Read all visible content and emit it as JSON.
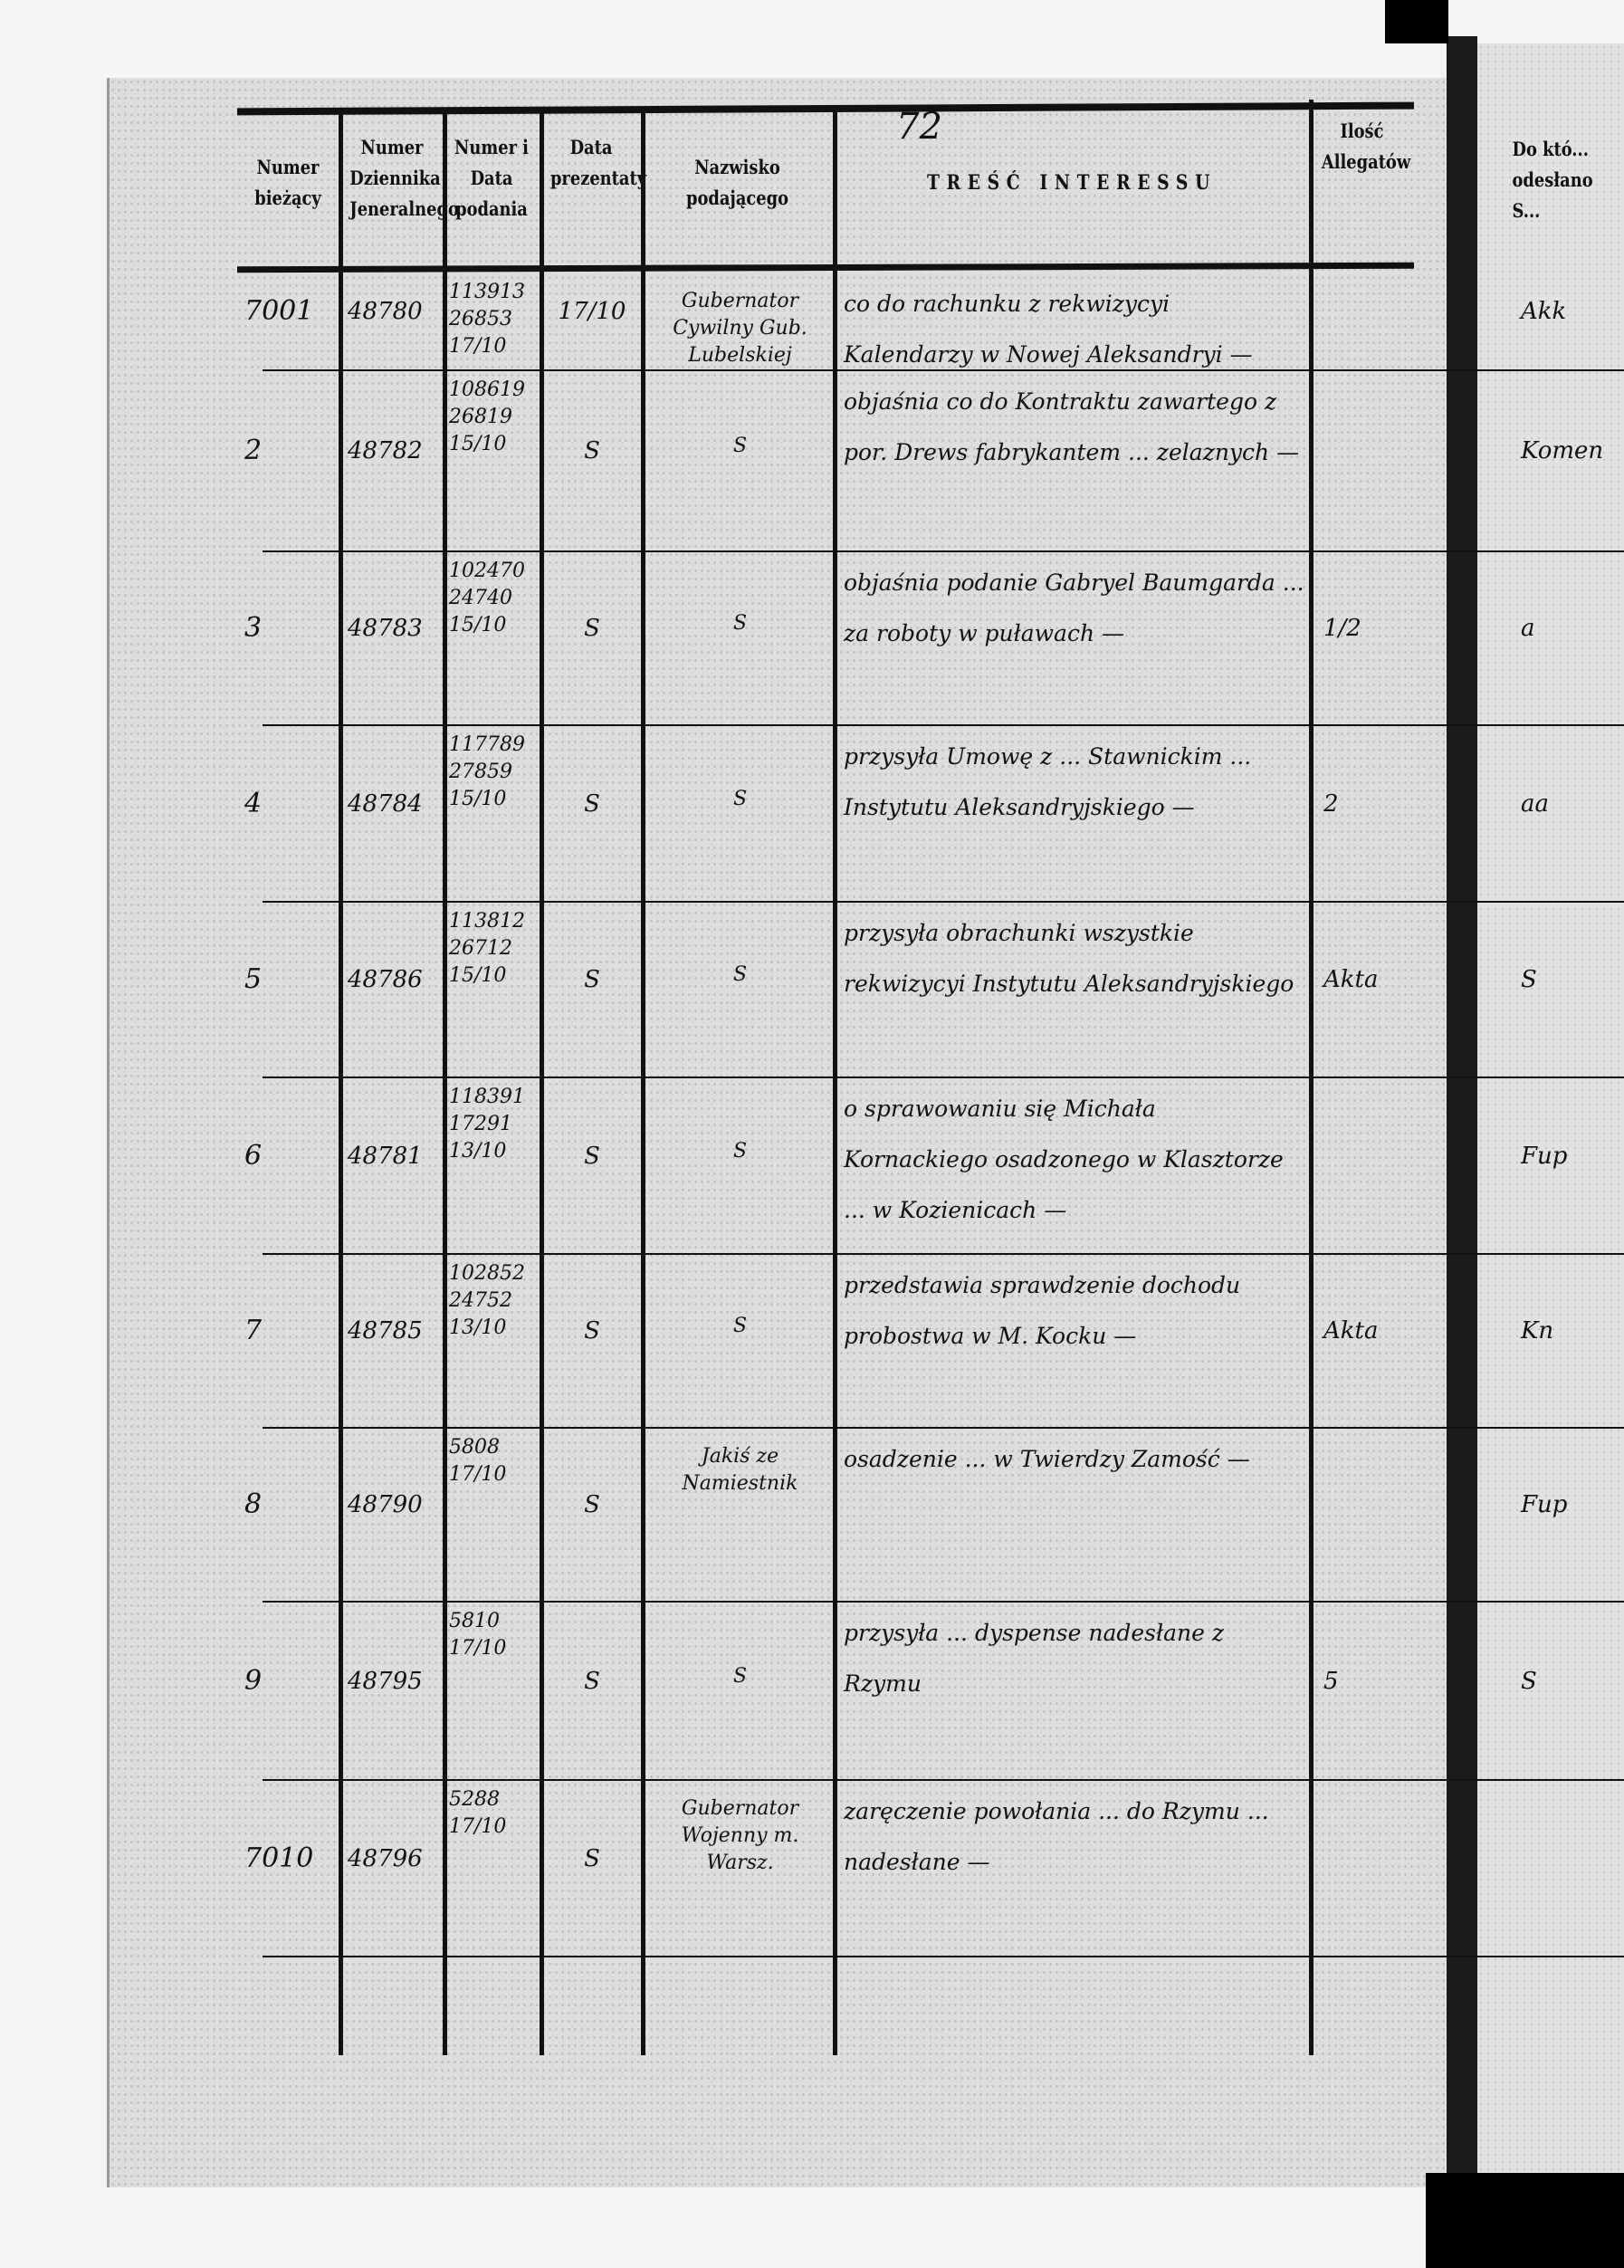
{
  "page_number": "72",
  "headers": {
    "numer_biezacy": "Numer bieżący",
    "numer_dziennika": "Numer Dziennika Jeneralnego",
    "numer_i_data": "Numer i Data podania",
    "data_prezentaty": "Data prezentaty",
    "nazwisko": "Nazwisko podającego",
    "tresc": "TREŚĆ INTERESSU",
    "ilosc": "Ilość Allegatów",
    "do_ktorego": "Do któ... odesłano S..."
  },
  "rows": [
    {
      "nr": "7001",
      "dziennik": "48780",
      "podanie": "113913 / 26853 / 17/10",
      "prezentata": "17/10",
      "podajacy": "Gubernator Cywilny Gub. Lubelskiej",
      "tresc": "co do rachunku z rekwizycyi Kalendarzy w Nowej Aleksandryi —",
      "allegaty": "",
      "odeslano": "Akk"
    },
    {
      "nr": "2",
      "dziennik": "48782",
      "podanie": "108619 / 26819 / 15/10",
      "prezentata": "S",
      "podajacy": "S",
      "tresc": "objaśnia co do Kontraktu zawartego z por. Drews fabrykantem ... zelaznych —",
      "allegaty": "",
      "odeslano": "Komen"
    },
    {
      "nr": "3",
      "dziennik": "48783",
      "podanie": "102470 / 24740 / 15/10",
      "prezentata": "S",
      "podajacy": "S",
      "tresc": "objaśnia podanie Gabryel Baumgarda ... za roboty w puławach —",
      "allegaty": "1/2",
      "odeslano": "a"
    },
    {
      "nr": "4",
      "dziennik": "48784",
      "podanie": "117789 / 27859 / 15/10",
      "prezentata": "S",
      "podajacy": "S",
      "tresc": "przysyła Umowę z ... Stawnickim ... Instytutu Aleksandryjskiego —",
      "allegaty": "2",
      "odeslano": "aa"
    },
    {
      "nr": "5",
      "dziennik": "48786",
      "podanie": "113812 / 26712 / 15/10",
      "prezentata": "S",
      "podajacy": "S",
      "tresc": "przysyła obrachunki wszystkie rekwizycyi Instytutu Aleksandryjskiego",
      "allegaty": "Akta",
      "odeslano": "S"
    },
    {
      "nr": "6",
      "dziennik": "48781",
      "podanie": "118391 / 17291 / 13/10",
      "prezentata": "S",
      "podajacy": "S",
      "tresc": "o sprawowaniu się Michała Kornackiego osadzonego w Klasztorze ... w Kozienicach —",
      "allegaty": "",
      "odeslano": "Fup"
    },
    {
      "nr": "7",
      "dziennik": "48785",
      "podanie": "102852 / 24752 / 13/10",
      "prezentata": "S",
      "podajacy": "S",
      "tresc": "przedstawia sprawdzenie dochodu probostwa w M. Kocku —",
      "allegaty": "Akta",
      "odeslano": "Kn"
    },
    {
      "nr": "8",
      "dziennik": "48790",
      "podanie": "5808 / 17/10",
      "prezentata": "S",
      "podajacy": "Jakiś ze Namiestnik",
      "tresc": "osadzenie ... w Twierdzy Zamość —",
      "allegaty": "",
      "odeslano": "Fup"
    },
    {
      "nr": "9",
      "dziennik": "48795",
      "podanie": "5810 / 17/10",
      "prezentata": "S",
      "podajacy": "S",
      "tresc": "przysyła ... dyspense nadesłane z Rzymu",
      "allegaty": "5",
      "odeslano": "S"
    },
    {
      "nr": "7010",
      "dziennik": "48796",
      "podanie": "5288 / 17/10",
      "prezentata": "S",
      "podajacy": "Gubernator Wojenny m. Warsz.",
      "tresc": "zaręczenie powołania ... do Rzymu ... nadesłane —",
      "allegaty": "",
      "odeslano": ""
    }
  ]
}
